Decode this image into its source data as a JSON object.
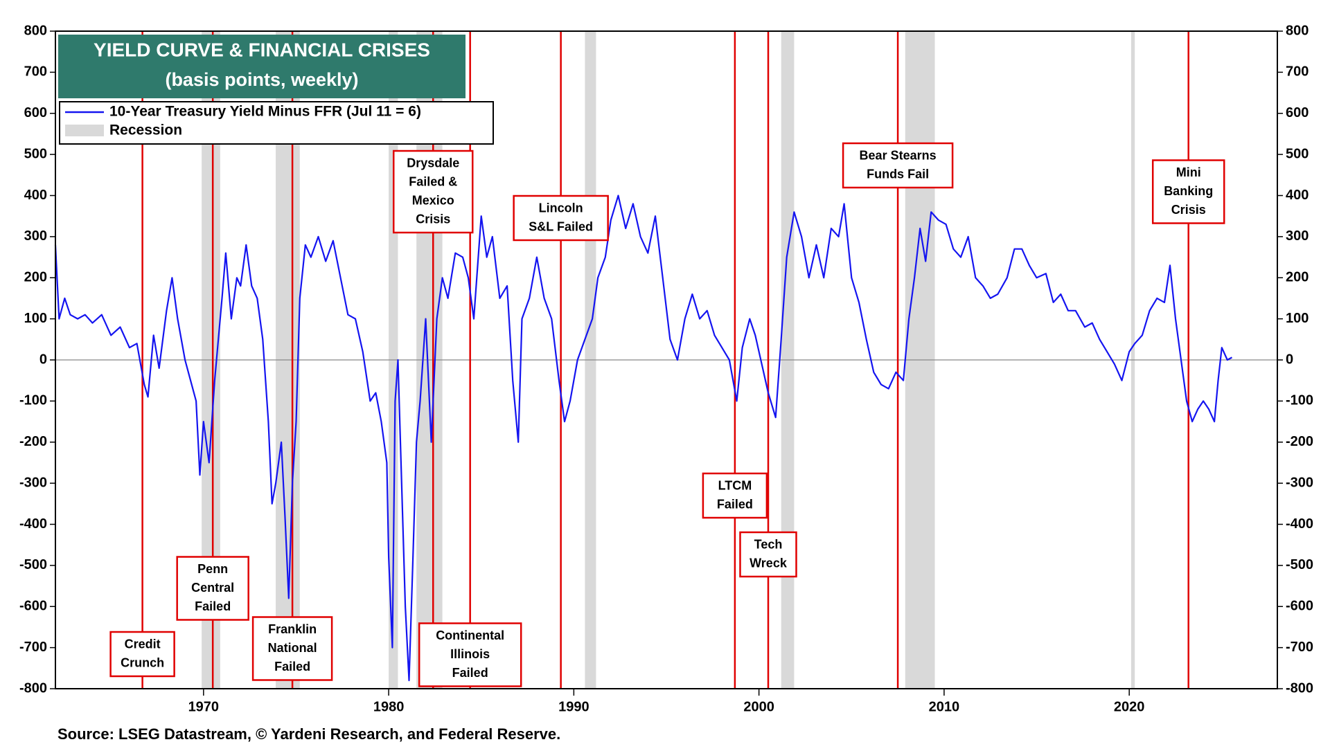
{
  "chart_data": {
    "type": "line",
    "title": "YIELD CURVE & FINANCIAL CRISES",
    "subtitle": "(basis points, weekly)",
    "source": "Source: LSEG Datastream, © Yardeni Research, and Federal Reserve.",
    "xlim": [
      1962,
      2028
    ],
    "xticks": [
      1970,
      1980,
      1990,
      2000,
      2010,
      2020
    ],
    "ylim": [
      -800,
      800
    ],
    "yticks": [
      -800,
      -700,
      -600,
      -500,
      -400,
      -300,
      -200,
      -100,
      0,
      100,
      200,
      300,
      400,
      500,
      600,
      700,
      800
    ],
    "x": [
      1962.0,
      1962.2,
      1962.5,
      1962.8,
      1963.2,
      1963.6,
      1964.0,
      1964.5,
      1965.0,
      1965.5,
      1966.0,
      1966.4,
      1966.8,
      1967.0,
      1967.3,
      1967.6,
      1968.0,
      1968.3,
      1968.6,
      1969.0,
      1969.3,
      1969.6,
      1969.8,
      1970.0,
      1970.3,
      1970.6,
      1970.8,
      1971.0,
      1971.2,
      1971.5,
      1971.8,
      1972.0,
      1972.3,
      1972.6,
      1972.9,
      1973.2,
      1973.5,
      1973.7,
      1973.9,
      1974.2,
      1974.4,
      1974.6,
      1974.8,
      1975.0,
      1975.2,
      1975.5,
      1975.8,
      1976.2,
      1976.6,
      1977.0,
      1977.4,
      1977.8,
      1978.2,
      1978.6,
      1979.0,
      1979.3,
      1979.6,
      1979.9,
      1980.0,
      1980.2,
      1980.35,
      1980.5,
      1980.7,
      1980.9,
      1981.1,
      1981.3,
      1981.5,
      1981.7,
      1982.0,
      1982.3,
      1982.6,
      1982.9,
      1983.2,
      1983.6,
      1984.0,
      1984.3,
      1984.6,
      1985.0,
      1985.3,
      1985.6,
      1986.0,
      1986.4,
      1986.7,
      1987.0,
      1987.2,
      1987.6,
      1988.0,
      1988.4,
      1988.8,
      1989.2,
      1989.5,
      1989.8,
      1990.2,
      1990.6,
      1991.0,
      1991.3,
      1991.7,
      1992.0,
      1992.4,
      1992.8,
      1993.2,
      1993.6,
      1994.0,
      1994.4,
      1994.8,
      1995.2,
      1995.6,
      1996.0,
      1996.4,
      1996.8,
      1997.2,
      1997.6,
      1998.0,
      1998.4,
      1998.8,
      1999.1,
      1999.5,
      1999.8,
      2000.2,
      2000.5,
      2000.9,
      2001.2,
      2001.5,
      2001.9,
      2002.3,
      2002.7,
      2003.1,
      2003.5,
      2003.9,
      2004.3,
      2004.6,
      2005.0,
      2005.4,
      2005.8,
      2006.2,
      2006.6,
      2007.0,
      2007.4,
      2007.8,
      2008.1,
      2008.4,
      2008.7,
      2009.0,
      2009.3,
      2009.7,
      2010.1,
      2010.5,
      2010.9,
      2011.3,
      2011.7,
      2012.1,
      2012.5,
      2012.9,
      2013.4,
      2013.8,
      2014.2,
      2014.6,
      2015.0,
      2015.5,
      2015.9,
      2016.3,
      2016.7,
      2017.1,
      2017.6,
      2018.0,
      2018.4,
      2018.8,
      2019.2,
      2019.6,
      2020.0,
      2020.3,
      2020.7,
      2021.1,
      2021.5,
      2021.9,
      2022.2,
      2022.5,
      2022.8,
      2023.1,
      2023.4,
      2023.7,
      2024.0,
      2024.3,
      2024.6,
      2024.8,
      2025.0,
      2025.3,
      2025.55
    ],
    "series": [
      {
        "name": "10-Year Treasury Yield Minus FFR (Jul 11 = 6)",
        "color": "#1414f0",
        "values": [
          280,
          100,
          150,
          110,
          100,
          110,
          90,
          110,
          60,
          80,
          30,
          40,
          -60,
          -90,
          60,
          -20,
          120,
          200,
          100,
          0,
          -50,
          -100,
          -280,
          -150,
          -250,
          -50,
          50,
          150,
          260,
          100,
          200,
          180,
          280,
          180,
          150,
          50,
          -150,
          -350,
          -300,
          -200,
          -380,
          -580,
          -300,
          -150,
          150,
          280,
          250,
          300,
          240,
          290,
          200,
          110,
          100,
          20,
          -100,
          -80,
          -150,
          -250,
          -480,
          -700,
          -100,
          0,
          -300,
          -600,
          -780,
          -500,
          -200,
          -100,
          100,
          -200,
          100,
          200,
          150,
          260,
          250,
          200,
          100,
          350,
          250,
          300,
          150,
          180,
          -50,
          -200,
          100,
          150,
          250,
          150,
          100,
          -50,
          -150,
          -100,
          0,
          50,
          100,
          200,
          250,
          340,
          400,
          320,
          380,
          300,
          260,
          350,
          200,
          50,
          0,
          100,
          160,
          100,
          120,
          60,
          30,
          0,
          -100,
          30,
          100,
          60,
          -20,
          -80,
          -140,
          50,
          250,
          360,
          300,
          200,
          280,
          200,
          320,
          300,
          380,
          200,
          140,
          50,
          -30,
          -60,
          -70,
          -30,
          -50,
          100,
          200,
          320,
          240,
          360,
          340,
          330,
          270,
          250,
          300,
          200,
          180,
          150,
          160,
          200,
          270,
          270,
          230,
          200,
          210,
          140,
          160,
          120,
          120,
          80,
          90,
          50,
          20,
          -10,
          -50,
          20,
          40,
          60,
          120,
          150,
          140,
          230,
          100,
          0,
          -100,
          -150,
          -120,
          -100,
          -120,
          -150,
          -50,
          30,
          0,
          6
        ]
      }
    ],
    "recessions": {
      "name": "Recession",
      "color": "#d9d9d9",
      "spans": [
        [
          1969.9,
          1970.9
        ],
        [
          1973.9,
          1975.2
        ],
        [
          1980.0,
          1980.5
        ],
        [
          1981.5,
          1982.9
        ],
        [
          1990.6,
          1991.2
        ],
        [
          2001.2,
          2001.9
        ],
        [
          2007.9,
          2009.5
        ],
        [
          2020.1,
          2020.3
        ]
      ]
    },
    "annotations": [
      {
        "x": 1966.7,
        "lines": [
          "Credit",
          "Crunch"
        ]
      },
      {
        "x": 1970.5,
        "lines": [
          "Penn",
          "Central",
          "Failed"
        ]
      },
      {
        "x": 1974.8,
        "lines": [
          "Franklin",
          "National",
          "Failed"
        ]
      },
      {
        "x": 1982.4,
        "lines": [
          "Drysdale",
          "Failed &",
          "Mexico",
          "Crisis"
        ]
      },
      {
        "x": 1984.4,
        "lines": [
          "Continental",
          "Illinois",
          "Failed"
        ]
      },
      {
        "x": 1989.3,
        "lines": [
          "Lincoln",
          "S&L Failed"
        ]
      },
      {
        "x": 1998.7,
        "lines": [
          "LTCM",
          "Failed"
        ]
      },
      {
        "x": 2000.5,
        "lines": [
          "Tech",
          "Wreck"
        ]
      },
      {
        "x": 2007.5,
        "lines": [
          "Bear Stearns",
          "Funds Fail"
        ]
      },
      {
        "x": 2023.2,
        "lines": [
          "Mini",
          "Banking",
          "Crisis"
        ]
      }
    ],
    "crisis_color": "#e00000"
  }
}
